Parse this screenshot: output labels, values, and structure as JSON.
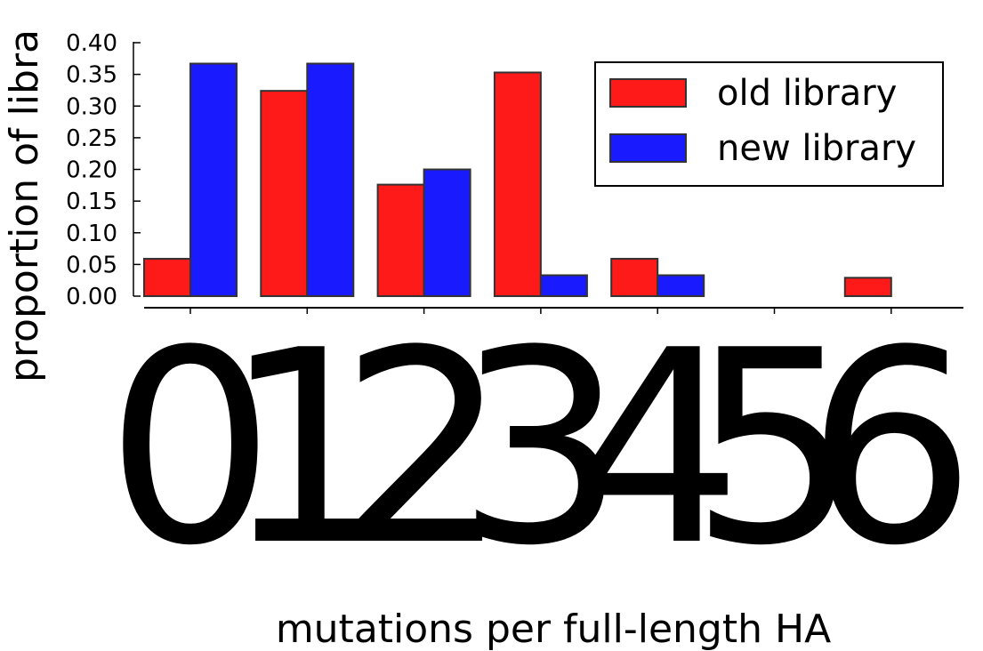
{
  "chart_data": {
    "type": "bar",
    "categories": [
      "0",
      "1",
      "2",
      "3",
      "4",
      "5",
      "6"
    ],
    "series": [
      {
        "name": "old library",
        "color": "#ff1a1a",
        "values": [
          0.059,
          0.324,
          0.176,
          0.353,
          0.059,
          0.0,
          0.029
        ]
      },
      {
        "name": "new library",
        "color": "#1a1aff",
        "values": [
          0.367,
          0.367,
          0.2,
          0.033,
          0.033,
          0.0,
          0.0
        ]
      }
    ],
    "xlabel": "mutations per full-length HA",
    "ylabel": "proportion of libra",
    "ylim": [
      0,
      0.4
    ],
    "yticks": [
      "0.00",
      "0.05",
      "0.10",
      "0.15",
      "0.20",
      "0.25",
      "0.30",
      "0.35",
      "0.40"
    ],
    "legend_position": "top-right",
    "grid": false
  }
}
